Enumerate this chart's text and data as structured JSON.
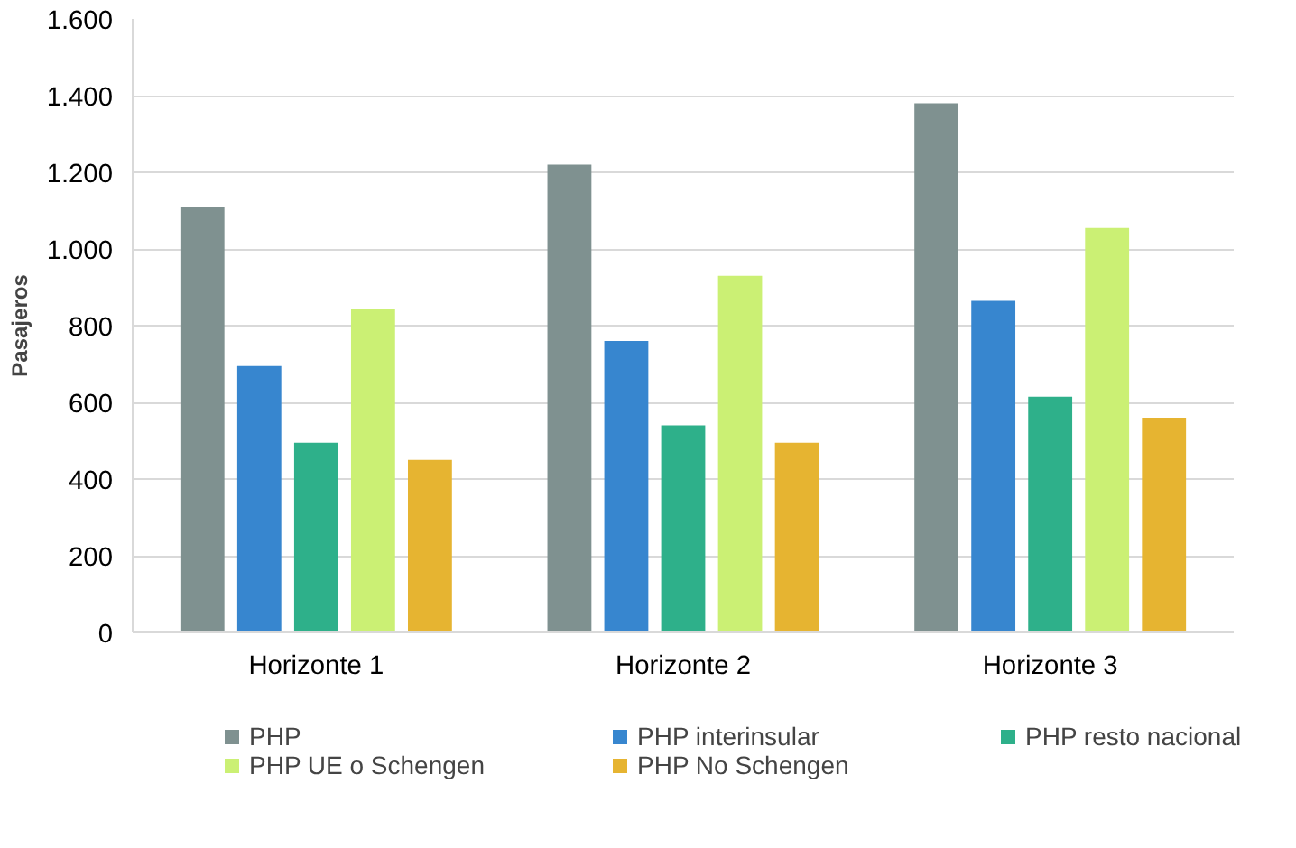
{
  "chart_data": {
    "type": "bar",
    "ylabel": "Pasajeros",
    "categories": [
      "Horizonte 1",
      "Horizonte 2",
      "Horizonte 3"
    ],
    "series": [
      {
        "name": "PHP",
        "color": "#7f9190",
        "values": [
          1110,
          1220,
          1380
        ]
      },
      {
        "name": "PHP interinsular",
        "color": "#3786cf",
        "values": [
          695,
          760,
          865
        ]
      },
      {
        "name": "PHP resto nacional",
        "color": "#2eb08a",
        "values": [
          495,
          540,
          615
        ]
      },
      {
        "name": "PHP UE o Schengen",
        "color": "#cbf074",
        "values": [
          845,
          930,
          1055
        ]
      },
      {
        "name": "PHP No Schengen",
        "color": "#e6b431",
        "values": [
          450,
          495,
          560
        ]
      }
    ],
    "ylim": [
      0,
      1600
    ],
    "yticks": [
      {
        "value": 0,
        "label": "0"
      },
      {
        "value": 200,
        "label": "200"
      },
      {
        "value": 400,
        "label": "400"
      },
      {
        "value": 600,
        "label": "600"
      },
      {
        "value": 800,
        "label": "800"
      },
      {
        "value": 1000,
        "label": "1.000"
      },
      {
        "value": 1200,
        "label": "1.200"
      },
      {
        "value": 1400,
        "label": "1.400"
      },
      {
        "value": 1600,
        "label": "1.600"
      }
    ],
    "grid": "y",
    "legend": "bottom"
  }
}
